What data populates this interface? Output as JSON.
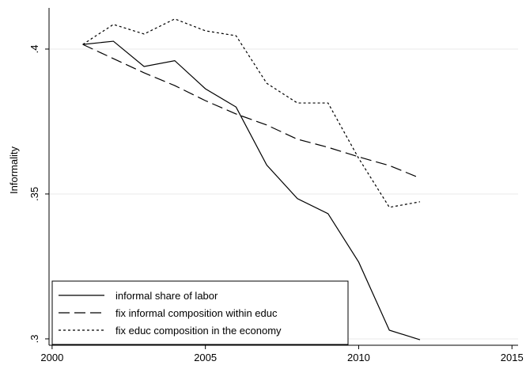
{
  "chart_data": {
    "type": "line",
    "ylabel": "Informality",
    "x": [
      2001,
      2002,
      2003,
      2004,
      2005,
      2006,
      2007,
      2008,
      2009,
      2010,
      2011,
      2012
    ],
    "series": [
      {
        "name": "informal share of labor",
        "color": "#000000",
        "dash": "solid",
        "values": [
          0.4016,
          0.4027,
          0.394,
          0.396,
          0.3863,
          0.38,
          0.36,
          0.3484,
          0.3432,
          0.3265,
          0.303,
          0.2997
        ]
      },
      {
        "name": "fix informal composition within educ",
        "color": "#000000",
        "dash": "long",
        "values": [
          0.4016,
          0.3967,
          0.3918,
          0.3874,
          0.3822,
          0.3776,
          0.3738,
          0.3689,
          0.3661,
          0.3628,
          0.3598,
          0.3555
        ]
      },
      {
        "name": "fix educ composition in the economy",
        "color": "#000000",
        "dash": "short",
        "values": [
          0.4016,
          0.4085,
          0.4052,
          0.4104,
          0.4063,
          0.4046,
          0.3882,
          0.3814,
          0.3814,
          0.3623,
          0.3454,
          0.3473
        ]
      }
    ],
    "xlim": [
      1999.9,
      2015.2
    ],
    "xticks": [
      2000,
      2005,
      2010,
      2015
    ],
    "ylim": [
      0.2978,
      0.4142
    ],
    "yticks": [
      {
        "value": 0.3,
        "label": ".3"
      },
      {
        "value": 0.35,
        "label": ".35"
      },
      {
        "value": 0.4,
        "label": ".4"
      }
    ],
    "grid": true,
    "legend": "lower-left"
  }
}
